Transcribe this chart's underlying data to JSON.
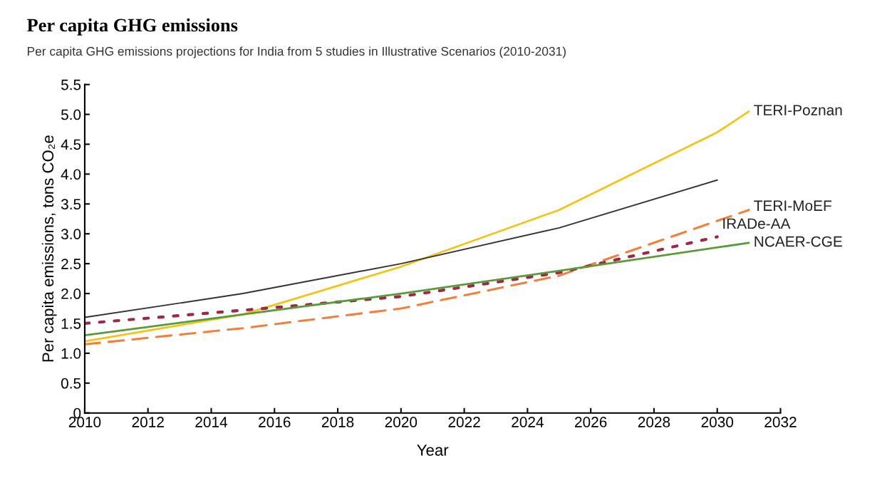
{
  "chart_data": {
    "type": "line",
    "title": "Per capita GHG emissions",
    "subtitle": "Per capita GHG emissions projections for India from 5 studies in Illustrative Scenarios (2010-2031)",
    "xlabel": "Year",
    "ylabel": "Per capita emissions, tons CO₂e",
    "xlim": [
      2010,
      2032
    ],
    "xticks": [
      2010,
      2012,
      2014,
      2016,
      2018,
      2020,
      2022,
      2024,
      2026,
      2028,
      2030,
      2032
    ],
    "ylim": [
      0,
      5.5
    ],
    "yticks": [
      0,
      0.5,
      {
        "value": 1,
        "label": "1.0"
      },
      1.5,
      {
        "value": 2,
        "label": "2.0"
      },
      2.5,
      {
        "value": 3,
        "label": "3.0"
      },
      3.5,
      {
        "value": 4,
        "label": "4.0"
      },
      4.5,
      {
        "value": 5,
        "label": "5.0"
      },
      5.5
    ],
    "grid": false,
    "legend": false,
    "series": [
      {
        "name": "TERI-Poznan",
        "color": "#f2c419",
        "line_style": "solid",
        "x": [
          2010,
          2015,
          2020,
          2025,
          2030,
          2031
        ],
        "values": [
          1.2,
          1.65,
          2.45,
          3.4,
          4.7,
          5.05
        ]
      },
      {
        "color": "#333333",
        "line_style": "solid",
        "x": [
          2010,
          2015,
          2020,
          2025,
          2030
        ],
        "values": [
          1.6,
          2.0,
          2.5,
          3.1,
          3.9
        ]
      },
      {
        "name": "TERI-MoEF",
        "color": "#f08040",
        "line_style": "dashed",
        "x": [
          2010,
          2015,
          2020,
          2025,
          2031
        ],
        "values": [
          1.15,
          1.42,
          1.75,
          2.3,
          3.4
        ]
      },
      {
        "name": "IRADe-AA",
        "color": "#9a2a45",
        "line_style": "dotted",
        "x": [
          2010,
          2015,
          2020,
          2025,
          2030
        ],
        "values": [
          1.5,
          1.72,
          1.95,
          2.35,
          2.95
        ]
      },
      {
        "name": "NCAER-CGE",
        "color": "#5a9a3a",
        "line_style": "solid",
        "x": [
          2010,
          2015,
          2020,
          2025,
          2031
        ],
        "values": [
          1.3,
          1.65,
          2.0,
          2.38,
          2.85
        ]
      }
    ]
  }
}
